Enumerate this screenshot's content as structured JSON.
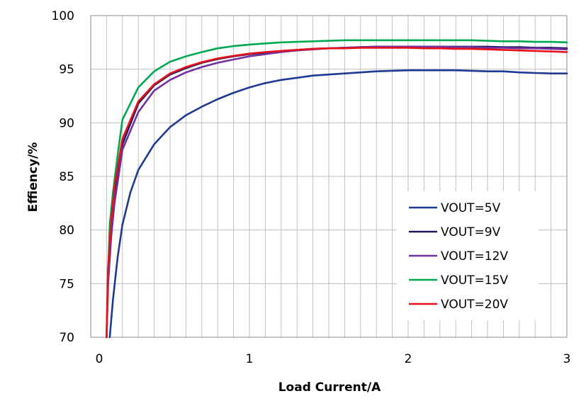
{
  "chart_data": {
    "type": "line",
    "title": "",
    "xlabel": "Load Current/A",
    "ylabel": "Effiency/%",
    "xlim": [
      0,
      3
    ],
    "ylim": [
      70,
      100
    ],
    "x_ticks": [
      0,
      1,
      2,
      3
    ],
    "y_ticks": [
      70,
      75,
      80,
      85,
      90,
      95,
      100
    ],
    "x_tick_labels": [
      "0",
      "1",
      "2",
      "3"
    ],
    "y_tick_labels": [
      "70",
      "75",
      "80",
      "85",
      "90",
      "95",
      "100"
    ],
    "grid": "vertical lines every 0.1 A, horizontal lines every 5 %",
    "legend_position": "lower-right",
    "series": [
      {
        "name": "VOUT=5V",
        "color": "#1f3a93",
        "points": [
          [
            0.12,
            70.0
          ],
          [
            0.14,
            73.5
          ],
          [
            0.17,
            77.5
          ],
          [
            0.2,
            80.5
          ],
          [
            0.25,
            83.5
          ],
          [
            0.3,
            85.6
          ],
          [
            0.4,
            88.0
          ],
          [
            0.5,
            89.6
          ],
          [
            0.6,
            90.7
          ],
          [
            0.7,
            91.5
          ],
          [
            0.8,
            92.2
          ],
          [
            0.9,
            92.8
          ],
          [
            1.0,
            93.3
          ],
          [
            1.1,
            93.7
          ],
          [
            1.2,
            94.0
          ],
          [
            1.3,
            94.2
          ],
          [
            1.4,
            94.4
          ],
          [
            1.5,
            94.5
          ],
          [
            1.6,
            94.6
          ],
          [
            1.7,
            94.7
          ],
          [
            1.8,
            94.8
          ],
          [
            1.9,
            94.85
          ],
          [
            2.0,
            94.9
          ],
          [
            2.1,
            94.9
          ],
          [
            2.2,
            94.9
          ],
          [
            2.3,
            94.9
          ],
          [
            2.4,
            94.85
          ],
          [
            2.5,
            94.8
          ],
          [
            2.6,
            94.8
          ],
          [
            2.7,
            94.7
          ],
          [
            2.8,
            94.65
          ],
          [
            2.9,
            94.6
          ],
          [
            3.0,
            94.6
          ]
        ]
      },
      {
        "name": "VOUT=9V",
        "color": "#1f1a5e",
        "points": [
          [
            0.1,
            70.0
          ],
          [
            0.11,
            76.5
          ],
          [
            0.13,
            80.5
          ],
          [
            0.15,
            83.5
          ],
          [
            0.2,
            88.0
          ],
          [
            0.3,
            91.8
          ],
          [
            0.4,
            93.5
          ],
          [
            0.5,
            94.5
          ],
          [
            0.6,
            95.1
          ],
          [
            0.7,
            95.6
          ],
          [
            0.8,
            95.95
          ],
          [
            0.9,
            96.2
          ],
          [
            1.0,
            96.4
          ],
          [
            1.1,
            96.55
          ],
          [
            1.2,
            96.7
          ],
          [
            1.3,
            96.8
          ],
          [
            1.4,
            96.9
          ],
          [
            1.5,
            96.95
          ],
          [
            1.6,
            97.0
          ],
          [
            1.7,
            97.05
          ],
          [
            1.8,
            97.1
          ],
          [
            1.9,
            97.1
          ],
          [
            2.0,
            97.1
          ],
          [
            2.1,
            97.1
          ],
          [
            2.2,
            97.1
          ],
          [
            2.3,
            97.1
          ],
          [
            2.4,
            97.1
          ],
          [
            2.5,
            97.1
          ],
          [
            2.6,
            97.05
          ],
          [
            2.7,
            97.05
          ],
          [
            2.8,
            97.0
          ],
          [
            2.9,
            97.0
          ],
          [
            3.0,
            96.95
          ]
        ]
      },
      {
        "name": "VOUT=12V",
        "color": "#7030a0",
        "points": [
          [
            0.1,
            70.0
          ],
          [
            0.11,
            75.0
          ],
          [
            0.13,
            79.5
          ],
          [
            0.15,
            82.5
          ],
          [
            0.2,
            87.5
          ],
          [
            0.3,
            91.0
          ],
          [
            0.4,
            93.0
          ],
          [
            0.5,
            94.0
          ],
          [
            0.6,
            94.7
          ],
          [
            0.7,
            95.2
          ],
          [
            0.8,
            95.6
          ],
          [
            0.9,
            95.9
          ],
          [
            1.0,
            96.2
          ],
          [
            1.1,
            96.4
          ],
          [
            1.2,
            96.6
          ],
          [
            1.3,
            96.75
          ],
          [
            1.4,
            96.85
          ],
          [
            1.5,
            96.95
          ],
          [
            1.6,
            97.0
          ],
          [
            1.7,
            97.05
          ],
          [
            1.8,
            97.1
          ],
          [
            1.9,
            97.1
          ],
          [
            2.0,
            97.1
          ],
          [
            2.1,
            97.1
          ],
          [
            2.2,
            97.1
          ],
          [
            2.3,
            97.05
          ],
          [
            2.4,
            97.05
          ],
          [
            2.5,
            97.0
          ],
          [
            2.6,
            97.0
          ],
          [
            2.7,
            96.95
          ],
          [
            2.8,
            96.95
          ],
          [
            2.9,
            96.9
          ],
          [
            3.0,
            96.85
          ]
        ]
      },
      {
        "name": "VOUT=15V",
        "color": "#00a850",
        "points": [
          [
            0.1,
            70.0
          ],
          [
            0.11,
            76.0
          ],
          [
            0.12,
            80.5
          ],
          [
            0.14,
            83.5
          ],
          [
            0.17,
            87.0
          ],
          [
            0.2,
            90.3
          ],
          [
            0.3,
            93.3
          ],
          [
            0.4,
            94.8
          ],
          [
            0.5,
            95.7
          ],
          [
            0.6,
            96.2
          ],
          [
            0.7,
            96.6
          ],
          [
            0.8,
            96.95
          ],
          [
            0.9,
            97.15
          ],
          [
            1.0,
            97.3
          ],
          [
            1.1,
            97.4
          ],
          [
            1.2,
            97.5
          ],
          [
            1.3,
            97.55
          ],
          [
            1.4,
            97.6
          ],
          [
            1.5,
            97.65
          ],
          [
            1.6,
            97.7
          ],
          [
            1.7,
            97.7
          ],
          [
            1.8,
            97.7
          ],
          [
            1.9,
            97.7
          ],
          [
            2.0,
            97.7
          ],
          [
            2.1,
            97.7
          ],
          [
            2.2,
            97.7
          ],
          [
            2.3,
            97.7
          ],
          [
            2.4,
            97.7
          ],
          [
            2.5,
            97.65
          ],
          [
            2.6,
            97.6
          ],
          [
            2.7,
            97.6
          ],
          [
            2.8,
            97.55
          ],
          [
            2.9,
            97.55
          ],
          [
            3.0,
            97.5
          ]
        ]
      },
      {
        "name": "VOUT=20V",
        "color": "#e8101a",
        "points": [
          [
            0.1,
            70.0
          ],
          [
            0.11,
            76.5
          ],
          [
            0.13,
            81.0
          ],
          [
            0.15,
            84.0
          ],
          [
            0.2,
            88.5
          ],
          [
            0.3,
            92.0
          ],
          [
            0.4,
            93.6
          ],
          [
            0.5,
            94.6
          ],
          [
            0.6,
            95.2
          ],
          [
            0.7,
            95.65
          ],
          [
            0.8,
            96.0
          ],
          [
            0.9,
            96.25
          ],
          [
            1.0,
            96.45
          ],
          [
            1.1,
            96.6
          ],
          [
            1.2,
            96.7
          ],
          [
            1.3,
            96.8
          ],
          [
            1.4,
            96.9
          ],
          [
            1.5,
            96.95
          ],
          [
            1.6,
            96.95
          ],
          [
            1.7,
            97.0
          ],
          [
            1.8,
            97.0
          ],
          [
            1.9,
            97.0
          ],
          [
            2.0,
            97.0
          ],
          [
            2.1,
            96.95
          ],
          [
            2.2,
            96.95
          ],
          [
            2.3,
            96.9
          ],
          [
            2.4,
            96.9
          ],
          [
            2.5,
            96.85
          ],
          [
            2.6,
            96.8
          ],
          [
            2.7,
            96.75
          ],
          [
            2.8,
            96.7
          ],
          [
            2.9,
            96.65
          ],
          [
            3.0,
            96.6
          ]
        ]
      }
    ]
  }
}
